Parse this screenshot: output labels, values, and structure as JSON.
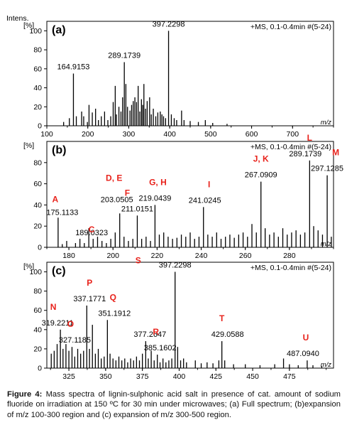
{
  "caption": {
    "label": "Figure 4:",
    "text": "Mass spectra of lignin-sulphonic acid salt in presence of cat. amount of sodium fluoride on irradiation at 150 ºC for 30 min under microwaves; (a) Full spectrum; (b)expansion of m/z 100-300 region and (c) expansion of m/z 300-500 region."
  },
  "chart_data": [
    {
      "type": "bar",
      "panel": "(a)",
      "title": "+MS, 0.1-0.4min #(5-24)",
      "ylabel_top": "Intens.",
      "ylabel": "[%]",
      "xlabel": "m/z",
      "xlim": [
        100,
        800
      ],
      "ylim": [
        0,
        110
      ],
      "xticks": [
        100,
        200,
        300,
        400,
        500,
        600,
        700
      ],
      "yticks": [
        0,
        20,
        40,
        60,
        80,
        100
      ],
      "annotations": [
        {
          "x": 164.9153,
          "label": "164.9153"
        },
        {
          "x": 289.1739,
          "label": "289.1739"
        },
        {
          "x": 397.2298,
          "label": "397.2298"
        }
      ],
      "peaks": [
        [
          164.9153,
          55
        ],
        [
          141,
          4
        ],
        [
          155,
          8
        ],
        [
          172,
          10
        ],
        [
          185,
          15
        ],
        [
          190,
          10
        ],
        [
          199,
          4
        ],
        [
          203,
          22
        ],
        [
          211,
          14
        ],
        [
          219,
          18
        ],
        [
          226,
          6
        ],
        [
          233,
          10
        ],
        [
          241,
          15
        ],
        [
          249,
          6
        ],
        [
          256,
          10
        ],
        [
          262,
          25
        ],
        [
          267,
          42
        ],
        [
          270,
          12
        ],
        [
          276,
          20
        ],
        [
          281,
          15
        ],
        [
          285,
          30
        ],
        [
          289.1739,
          67
        ],
        [
          293,
          44
        ],
        [
          297,
          20
        ],
        [
          303,
          16
        ],
        [
          307,
          22
        ],
        [
          311,
          26
        ],
        [
          315,
          30
        ],
        [
          319,
          25
        ],
        [
          323,
          42
        ],
        [
          327,
          15
        ],
        [
          331,
          28
        ],
        [
          334,
          22
        ],
        [
          337,
          44
        ],
        [
          341,
          18
        ],
        [
          345,
          26
        ],
        [
          351,
          30
        ],
        [
          355,
          12
        ],
        [
          360,
          18
        ],
        [
          366,
          10
        ],
        [
          371,
          14
        ],
        [
          377,
          15
        ],
        [
          381,
          12
        ],
        [
          385,
          10
        ],
        [
          390,
          8
        ],
        [
          397.2298,
          100
        ],
        [
          404,
          12
        ],
        [
          411,
          8
        ],
        [
          417,
          6
        ],
        [
          429,
          16
        ],
        [
          435,
          6
        ],
        [
          450,
          5
        ],
        [
          470,
          4
        ],
        [
          487,
          6
        ],
        [
          505,
          3
        ],
        [
          540,
          2
        ]
      ]
    },
    {
      "type": "bar",
      "panel": "(b)",
      "title": "+MS, 0.1-0.4min #(5-24)",
      "ylabel": "[%]",
      "xlabel": "m/z",
      "xlim": [
        170,
        300
      ],
      "ylim": [
        0,
        100
      ],
      "xticks": [
        180,
        200,
        220,
        240,
        260,
        280
      ],
      "yticks": [
        0,
        20,
        40,
        60,
        80
      ],
      "annotations": [
        {
          "x": 175.1133,
          "label": "175.1133",
          "letter": "A"
        },
        {
          "x": 189.0323,
          "label": "189.0323",
          "letter": "C"
        },
        {
          "x": 203.0505,
          "label": "203.0505",
          "letter": "D, E"
        },
        {
          "x": 211.0151,
          "label": "211.0151",
          "letter": "F"
        },
        {
          "x": 219.0439,
          "label": "219.0439",
          "letter": "G, H"
        },
        {
          "x": 241.0245,
          "label": "241.0245",
          "letter": "I"
        },
        {
          "x": 267.0909,
          "label": "267.0909",
          "letter": "J, K"
        },
        {
          "x": 289.1739,
          "label": "289.1739",
          "letter": "L"
        },
        {
          "x": 297.1285,
          "label": "297.1285",
          "letter": "M"
        }
      ],
      "peaks": [
        [
          175.1133,
          28
        ],
        [
          177,
          3
        ],
        [
          179,
          6
        ],
        [
          183,
          4
        ],
        [
          185,
          8
        ],
        [
          187,
          4
        ],
        [
          189.0323,
          18
        ],
        [
          191,
          8
        ],
        [
          193,
          10
        ],
        [
          195,
          6
        ],
        [
          197,
          4
        ],
        [
          199,
          8
        ],
        [
          201,
          14
        ],
        [
          203.0505,
          32
        ],
        [
          205,
          10
        ],
        [
          207,
          6
        ],
        [
          209,
          8
        ],
        [
          211.0151,
          30
        ],
        [
          213,
          8
        ],
        [
          215,
          10
        ],
        [
          217,
          6
        ],
        [
          219.0439,
          40
        ],
        [
          221,
          12
        ],
        [
          223,
          14
        ],
        [
          225,
          10
        ],
        [
          227,
          8
        ],
        [
          229,
          9
        ],
        [
          231,
          12
        ],
        [
          233,
          10
        ],
        [
          235,
          14
        ],
        [
          237,
          8
        ],
        [
          239,
          10
        ],
        [
          241.0245,
          38
        ],
        [
          243,
          12
        ],
        [
          245,
          10
        ],
        [
          247,
          14
        ],
        [
          249,
          8
        ],
        [
          251,
          10
        ],
        [
          253,
          12
        ],
        [
          255,
          9
        ],
        [
          257,
          12
        ],
        [
          259,
          14
        ],
        [
          261,
          10
        ],
        [
          263,
          22
        ],
        [
          265,
          14
        ],
        [
          267.0909,
          62
        ],
        [
          269,
          18
        ],
        [
          271,
          12
        ],
        [
          273,
          14
        ],
        [
          275,
          10
        ],
        [
          277,
          18
        ],
        [
          279,
          12
        ],
        [
          281,
          14
        ],
        [
          283,
          16
        ],
        [
          285,
          12
        ],
        [
          287,
          14
        ],
        [
          289.1739,
          82
        ],
        [
          291,
          20
        ],
        [
          293,
          16
        ],
        [
          295,
          12
        ],
        [
          297.1285,
          68
        ],
        [
          299,
          10
        ]
      ]
    },
    {
      "type": "bar",
      "panel": "(c)",
      "title": "+MS, 0.1-0.4min #(5-24)",
      "ylabel": "[%]",
      "xlabel": "m/z",
      "xlim": [
        310,
        505
      ],
      "ylim": [
        0,
        110
      ],
      "xticks": [
        325,
        350,
        375,
        400,
        425,
        450,
        475
      ],
      "yticks": [
        0,
        20,
        40,
        60,
        80,
        100
      ],
      "annotations": [
        {
          "x": 319.2211,
          "label": "319.2211",
          "letter": "N"
        },
        {
          "x": 327.1185,
          "label": "327.1185",
          "letter": "O"
        },
        {
          "x": 337.1771,
          "label": "337.1771",
          "letter": "P"
        },
        {
          "x": 351.1912,
          "label": "351.1912",
          "letter": "Q"
        },
        {
          "x": 377.2647,
          "label": "377.2647"
        },
        {
          "x": 385.1602,
          "label": "385.1602",
          "letter": "R"
        },
        {
          "x": 397.2298,
          "label": "397.2298",
          "letter": "S"
        },
        {
          "x": 429.0588,
          "label": "429.0588",
          "letter": "T"
        },
        {
          "x": 487.094,
          "label": "487.0940",
          "letter": "U"
        }
      ],
      "peaks": [
        [
          313,
          15
        ],
        [
          315,
          18
        ],
        [
          317,
          25
        ],
        [
          319.2211,
          40
        ],
        [
          321,
          20
        ],
        [
          323,
          25
        ],
        [
          325,
          18
        ],
        [
          327.1185,
          22
        ],
        [
          329,
          12
        ],
        [
          331,
          20
        ],
        [
          333,
          15
        ],
        [
          335,
          18
        ],
        [
          337.1771,
          65
        ],
        [
          339,
          20
        ],
        [
          341,
          45
        ],
        [
          343,
          15
        ],
        [
          345,
          20
        ],
        [
          347,
          10
        ],
        [
          349,
          12
        ],
        [
          351.1912,
          50
        ],
        [
          353,
          15
        ],
        [
          355,
          10
        ],
        [
          357,
          8
        ],
        [
          359,
          12
        ],
        [
          361,
          8
        ],
        [
          363,
          10
        ],
        [
          365,
          6
        ],
        [
          367,
          10
        ],
        [
          369,
          8
        ],
        [
          371,
          12
        ],
        [
          373,
          8
        ],
        [
          375,
          15
        ],
        [
          377.2647,
          28
        ],
        [
          379,
          10
        ],
        [
          381,
          18
        ],
        [
          383,
          8
        ],
        [
          385.1602,
          14
        ],
        [
          387,
          6
        ],
        [
          389,
          10
        ],
        [
          391,
          6
        ],
        [
          393,
          8
        ],
        [
          395,
          10
        ],
        [
          397.2298,
          100
        ],
        [
          399,
          22
        ],
        [
          401,
          8
        ],
        [
          403,
          10
        ],
        [
          405,
          6
        ],
        [
          411,
          8
        ],
        [
          415,
          5
        ],
        [
          419,
          6
        ],
        [
          423,
          5
        ],
        [
          427,
          8
        ],
        [
          429.0588,
          28
        ],
        [
          431,
          8
        ],
        [
          437,
          4
        ],
        [
          445,
          4
        ],
        [
          455,
          3
        ],
        [
          465,
          4
        ],
        [
          471,
          10
        ],
        [
          475,
          4
        ],
        [
          481,
          3
        ],
        [
          487.094,
          8
        ],
        [
          491,
          3
        ],
        [
          497,
          2
        ]
      ]
    }
  ]
}
